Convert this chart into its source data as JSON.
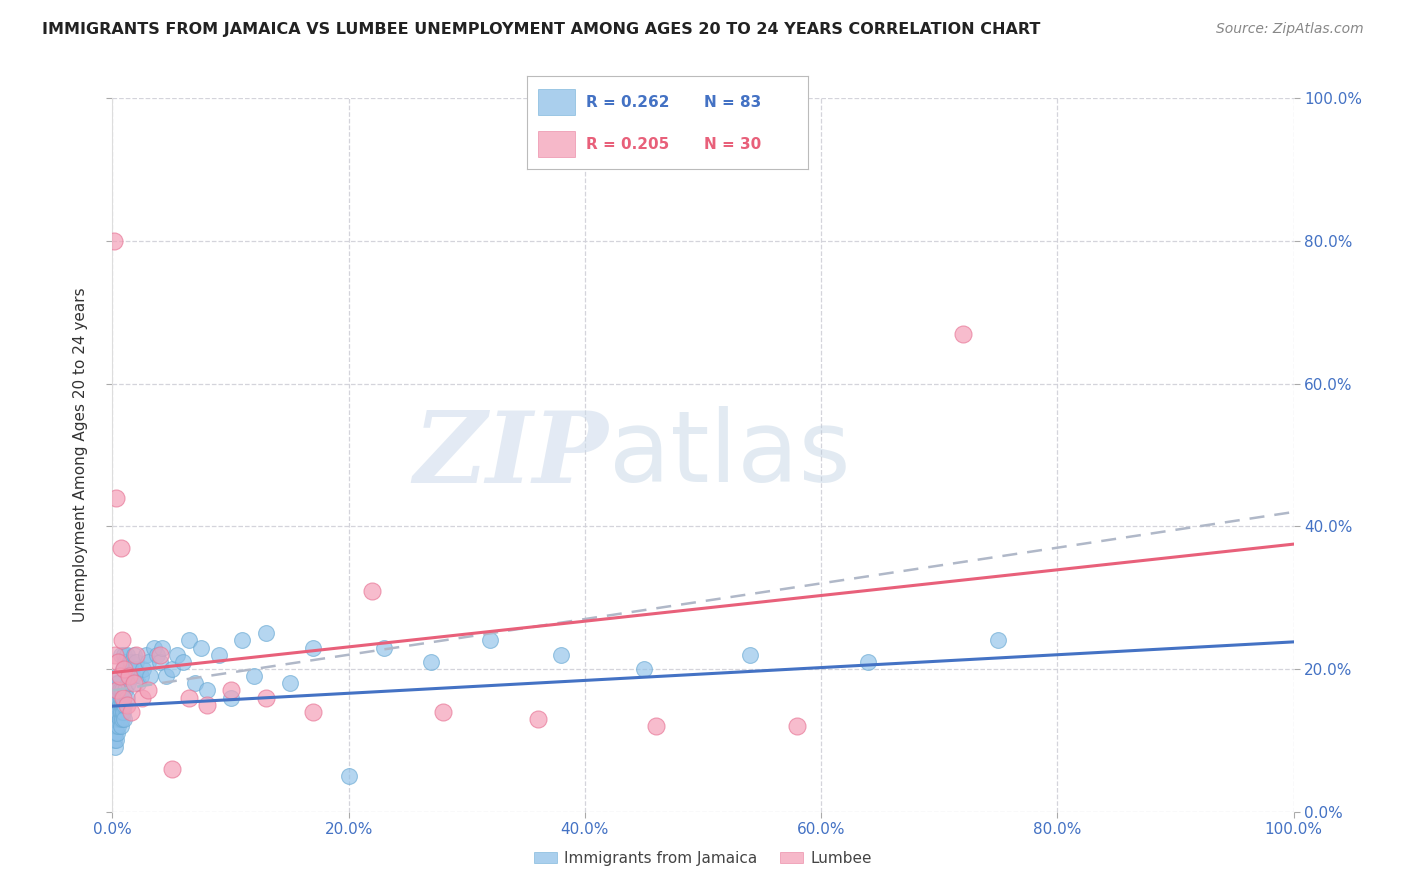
{
  "title": "IMMIGRANTS FROM JAMAICA VS LUMBEE UNEMPLOYMENT AMONG AGES 20 TO 24 YEARS CORRELATION CHART",
  "source": "Source: ZipAtlas.com",
  "ylabel": "Unemployment Among Ages 20 to 24 years",
  "xlim": [
    0,
    1.0
  ],
  "ylim": [
    0,
    1.0
  ],
  "xticks": [
    0.0,
    0.2,
    0.4,
    0.6,
    0.8,
    1.0
  ],
  "yticks": [
    0.0,
    0.2,
    0.4,
    0.6,
    0.8,
    1.0
  ],
  "background_color": "#ffffff",
  "grid_color": "#d0d0d8",
  "jamaica_color": "#8ec0e8",
  "lumbee_color": "#f4a0b8",
  "jamaica_edge_color": "#6aaad4",
  "lumbee_edge_color": "#e87898",
  "jamaica_line_color": "#4472c4",
  "lumbee_line_color": "#e8607a",
  "dashed_line_color": "#b0b8c8",
  "right_axis_color": "#4472c4",
  "legend_r_jamaica": "0.262",
  "legend_n_jamaica": "83",
  "legend_r_lumbee": "0.205",
  "legend_n_lumbee": "30",
  "jamaica_x": [
    0.001,
    0.001,
    0.001,
    0.002,
    0.002,
    0.002,
    0.002,
    0.002,
    0.003,
    0.003,
    0.003,
    0.003,
    0.003,
    0.004,
    0.004,
    0.004,
    0.004,
    0.004,
    0.005,
    0.005,
    0.005,
    0.005,
    0.006,
    0.006,
    0.006,
    0.007,
    0.007,
    0.007,
    0.007,
    0.008,
    0.008,
    0.008,
    0.009,
    0.009,
    0.01,
    0.01,
    0.01,
    0.011,
    0.011,
    0.012,
    0.012,
    0.013,
    0.014,
    0.015,
    0.016,
    0.017,
    0.018,
    0.019,
    0.02,
    0.022,
    0.024,
    0.026,
    0.028,
    0.03,
    0.032,
    0.035,
    0.038,
    0.04,
    0.042,
    0.045,
    0.05,
    0.055,
    0.06,
    0.065,
    0.07,
    0.075,
    0.08,
    0.09,
    0.1,
    0.11,
    0.12,
    0.13,
    0.15,
    0.17,
    0.2,
    0.23,
    0.27,
    0.32,
    0.38,
    0.45,
    0.54,
    0.64,
    0.75
  ],
  "jamaica_y": [
    0.1,
    0.13,
    0.15,
    0.09,
    0.11,
    0.13,
    0.15,
    0.17,
    0.1,
    0.12,
    0.14,
    0.16,
    0.18,
    0.11,
    0.13,
    0.15,
    0.17,
    0.19,
    0.12,
    0.14,
    0.16,
    0.18,
    0.13,
    0.15,
    0.17,
    0.12,
    0.14,
    0.16,
    0.22,
    0.13,
    0.15,
    0.17,
    0.14,
    0.2,
    0.13,
    0.15,
    0.22,
    0.17,
    0.21,
    0.16,
    0.22,
    0.18,
    0.19,
    0.2,
    0.21,
    0.19,
    0.22,
    0.2,
    0.21,
    0.18,
    0.19,
    0.2,
    0.22,
    0.21,
    0.19,
    0.23,
    0.22,
    0.21,
    0.23,
    0.19,
    0.2,
    0.22,
    0.21,
    0.24,
    0.18,
    0.23,
    0.17,
    0.22,
    0.16,
    0.24,
    0.19,
    0.25,
    0.18,
    0.23,
    0.05,
    0.23,
    0.21,
    0.24,
    0.22,
    0.2,
    0.22,
    0.21,
    0.24
  ],
  "lumbee_x": [
    0.001,
    0.002,
    0.003,
    0.004,
    0.005,
    0.006,
    0.007,
    0.008,
    0.009,
    0.01,
    0.012,
    0.014,
    0.016,
    0.018,
    0.02,
    0.025,
    0.03,
    0.04,
    0.05,
    0.065,
    0.08,
    0.1,
    0.13,
    0.17,
    0.22,
    0.28,
    0.36,
    0.46,
    0.58,
    0.72
  ],
  "lumbee_y": [
    0.8,
    0.22,
    0.44,
    0.17,
    0.21,
    0.19,
    0.37,
    0.24,
    0.16,
    0.2,
    0.15,
    0.19,
    0.14,
    0.18,
    0.22,
    0.16,
    0.17,
    0.22,
    0.06,
    0.16,
    0.15,
    0.17,
    0.16,
    0.14,
    0.31,
    0.14,
    0.13,
    0.12,
    0.12,
    0.67
  ],
  "jamaica_trend_y": [
    0.148,
    0.238
  ],
  "lumbee_trend_y": [
    0.195,
    0.375
  ],
  "dashed_trend_y": [
    0.17,
    0.42
  ]
}
